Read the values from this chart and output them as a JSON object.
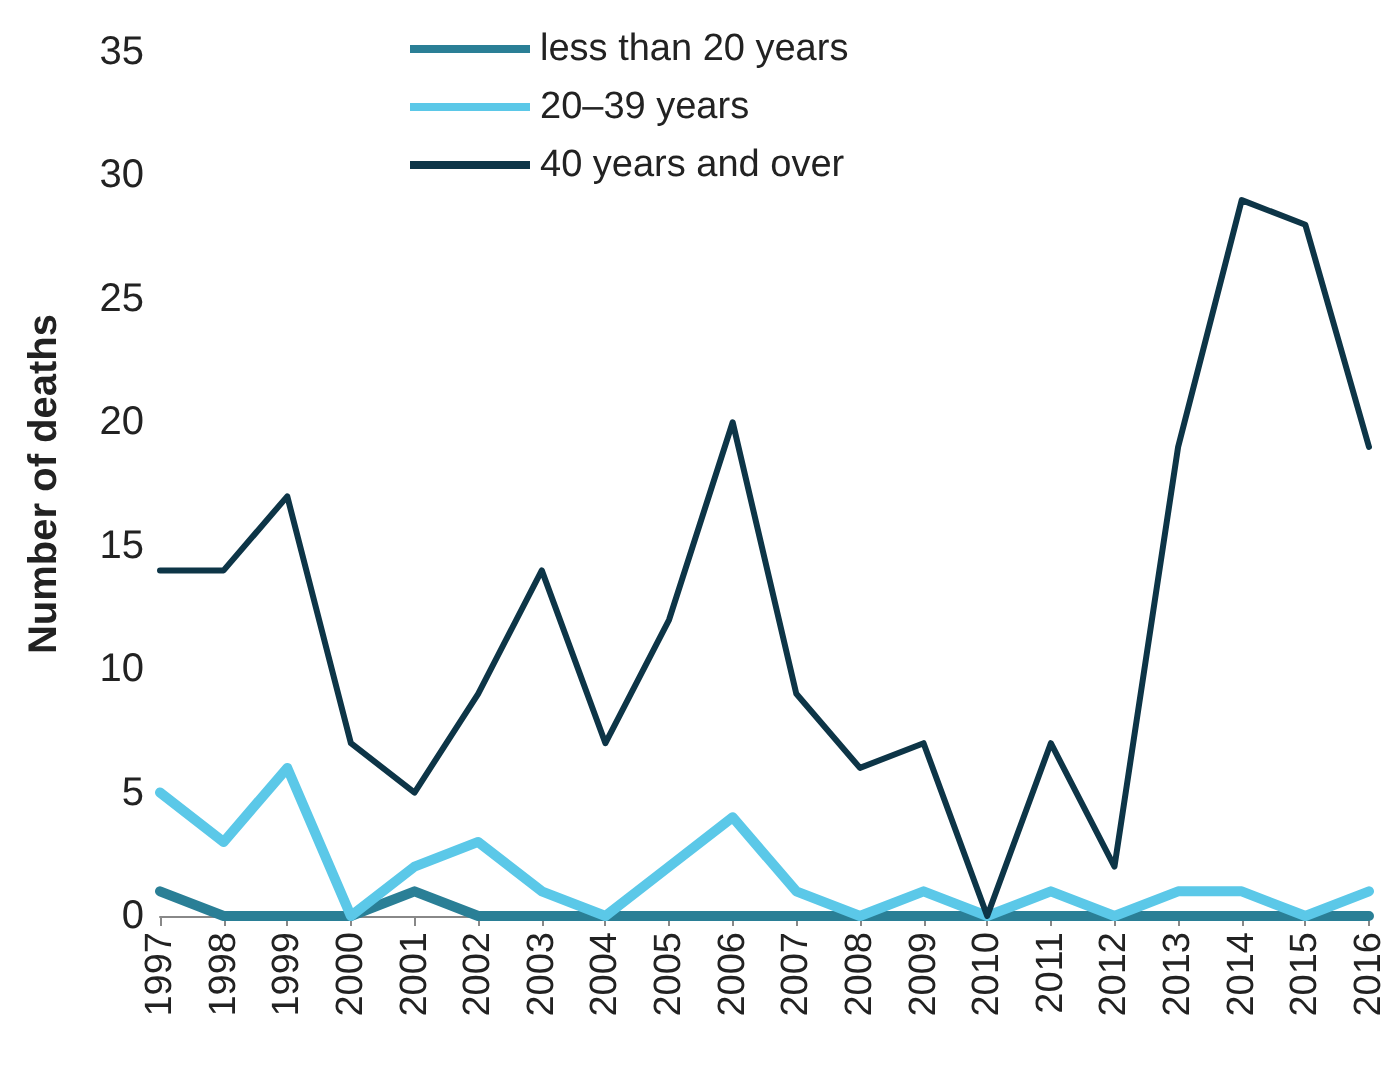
{
  "chart_data": {
    "type": "line",
    "ylabel": "Number of deaths",
    "categories": [
      "1997",
      "1998",
      "1999",
      "2000",
      "2001",
      "2002",
      "2003",
      "2004",
      "2005",
      "2006",
      "2007",
      "2008",
      "2009",
      "2010",
      "2011",
      "2012",
      "2013",
      "2014",
      "2015",
      "2016"
    ],
    "series": [
      {
        "name": "less than 20 years",
        "color": "#2a7f96",
        "values": [
          1,
          0,
          0,
          0,
          1,
          0,
          0,
          0,
          0,
          0,
          0,
          0,
          0,
          0,
          0,
          0,
          0,
          0,
          0,
          0
        ]
      },
      {
        "name": "20–39 years",
        "color": "#5bc8e8",
        "values": [
          5,
          3,
          6,
          0,
          2,
          3,
          1,
          0,
          2,
          4,
          1,
          0,
          1,
          0,
          1,
          0,
          1,
          1,
          0,
          1
        ]
      },
      {
        "name": "40 years and over",
        "color": "#0d3547",
        "values": [
          14,
          14,
          17,
          7,
          5,
          9,
          14,
          7,
          12,
          20,
          9,
          6,
          7,
          0,
          7,
          2,
          19,
          29,
          28,
          19
        ]
      }
    ],
    "ylim": [
      0,
      35
    ],
    "yticks": [
      0,
      5,
      10,
      15,
      20,
      25,
      30,
      35
    ],
    "grid": false,
    "legend": "top",
    "marker": "none",
    "line_style": "solid"
  }
}
